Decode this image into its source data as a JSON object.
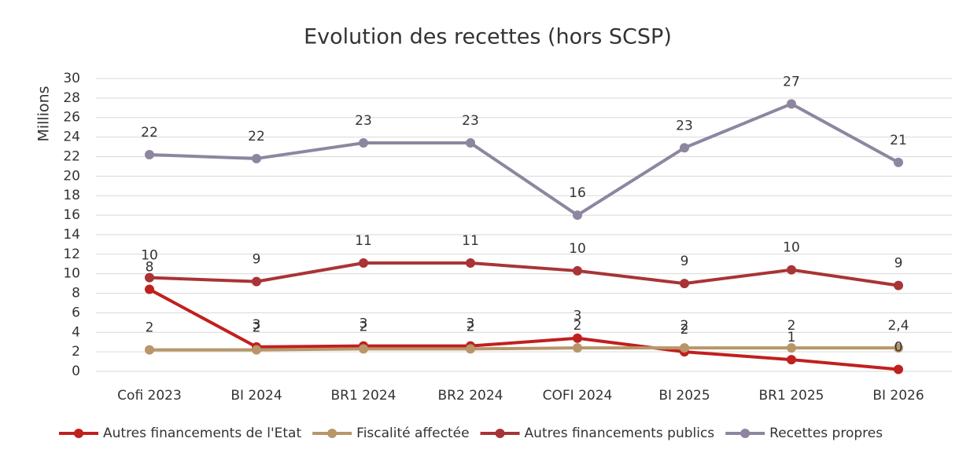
{
  "chart_data": {
    "type": "line",
    "title": "Evolution des recettes (hors SCSP)",
    "y_label": "Millions",
    "categories": [
      "Cofi 2023",
      "BI 2024",
      "BR1 2024",
      "BR2 2024",
      "COFI 2024",
      "BI 2025",
      "BR1 2025",
      "BI 2026"
    ],
    "series": [
      {
        "name": "Autres financements de l'Etat",
        "color": "#c0201e",
        "values": [
          8.4,
          2.5,
          2.6,
          2.6,
          3.4,
          2.0,
          1.2,
          0.2
        ],
        "value_labels": [
          "8",
          "3",
          "3",
          "3",
          "3",
          "2",
          "1",
          "0"
        ]
      },
      {
        "name": "Fiscalité affectée",
        "color": "#b8966a",
        "values": [
          2.2,
          2.2,
          2.3,
          2.3,
          2.4,
          2.4,
          2.4,
          2.4
        ],
        "value_labels": [
          "2",
          "2",
          "2",
          "2",
          "2",
          "2",
          "2",
          "2,4"
        ]
      },
      {
        "name": "Autres financements publics",
        "color": "#a83436",
        "values": [
          9.6,
          9.2,
          11.1,
          11.1,
          10.3,
          9.0,
          10.4,
          8.8
        ],
        "value_labels": [
          "10",
          "9",
          "11",
          "11",
          "10",
          "9",
          "10",
          "9"
        ]
      },
      {
        "name": "Recettes propres",
        "color": "#8e86a0",
        "values": [
          22.2,
          21.8,
          23.4,
          23.4,
          16.0,
          22.9,
          27.4,
          21.4
        ],
        "value_labels": [
          "22",
          "22",
          "23",
          "23",
          "16",
          "23",
          "27",
          "21"
        ]
      }
    ],
    "ylim": [
      0,
      30
    ],
    "yticks": [
      0,
      2,
      4,
      6,
      8,
      10,
      12,
      14,
      16,
      18,
      20,
      22,
      24,
      26,
      28,
      30
    ],
    "grid": true,
    "legend": "bottom"
  }
}
